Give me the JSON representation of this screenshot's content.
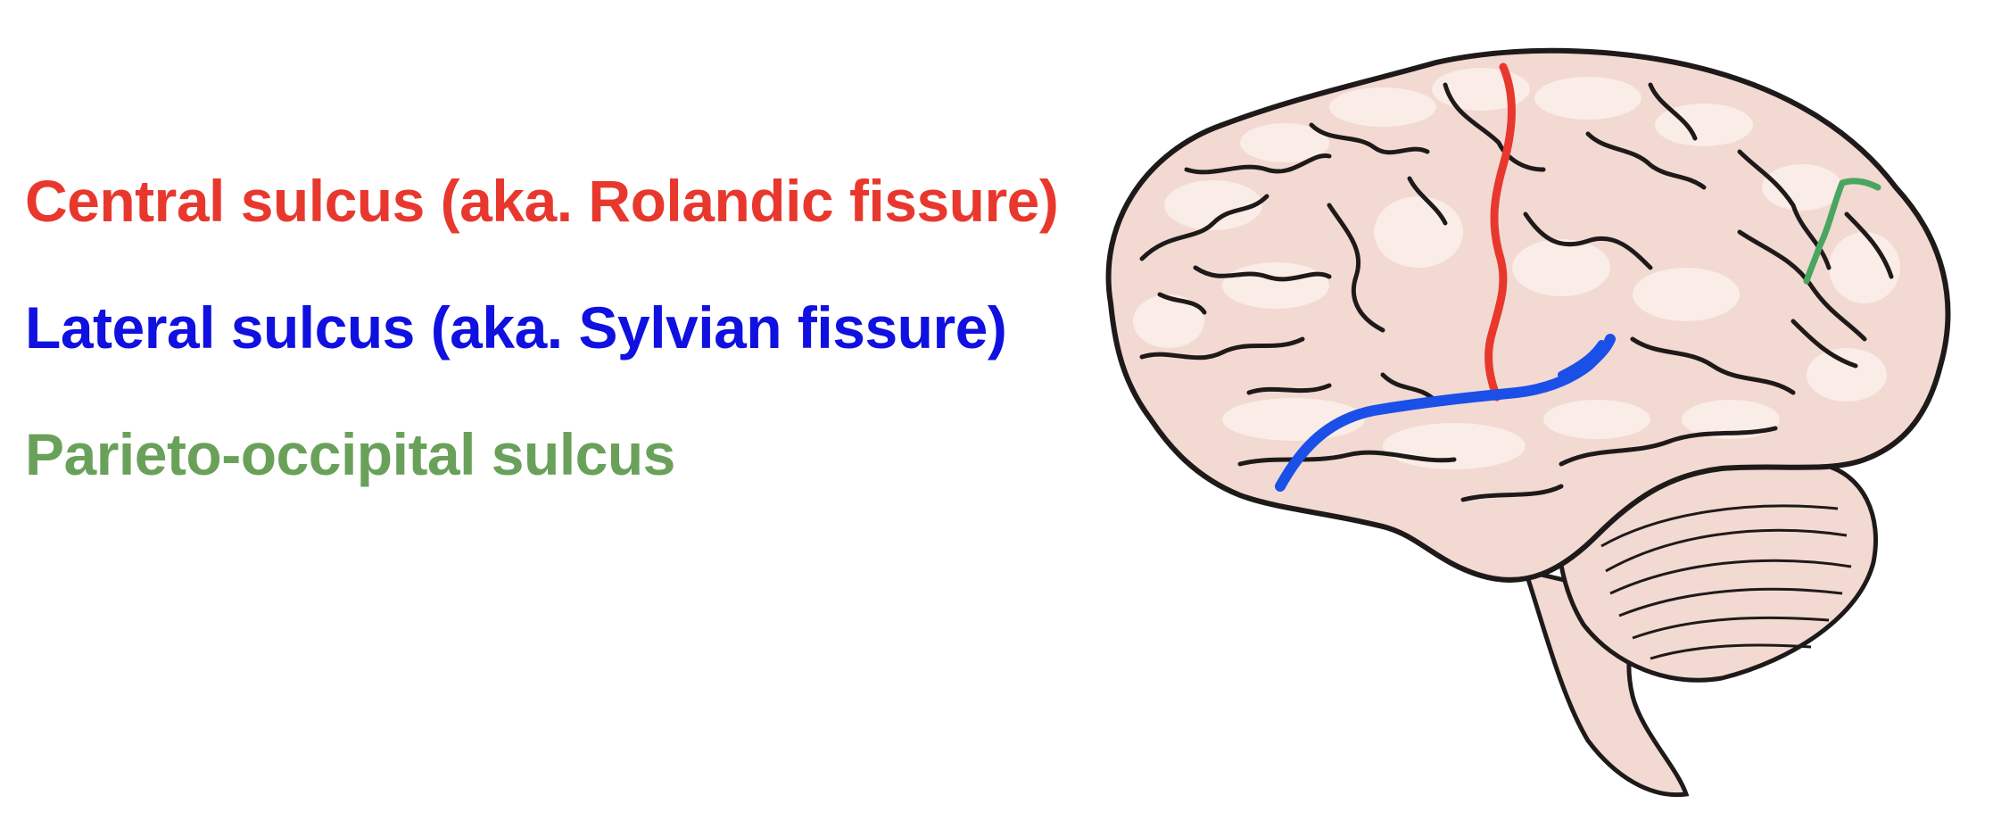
{
  "legend": {
    "items": [
      {
        "label": "Central sulcus (aka. Rolandic fissure)",
        "color": "#e8382e"
      },
      {
        "label": "Lateral sulcus (aka. Sylvian fissure)",
        "color": "#1010e0"
      },
      {
        "label": "Parieto-occipital sulcus",
        "color": "#6aa15a"
      }
    ]
  },
  "illustration": {
    "subject": "brain-lateral-view",
    "colors": {
      "tissue": "#f2d9d2",
      "highlight": "#fbeeea",
      "outline": "#1f1a1a",
      "central_sulcus": "#e8382e",
      "lateral_sulcus": "#1a4fe8",
      "parieto_occipital_sulcus": "#4aa560"
    }
  }
}
